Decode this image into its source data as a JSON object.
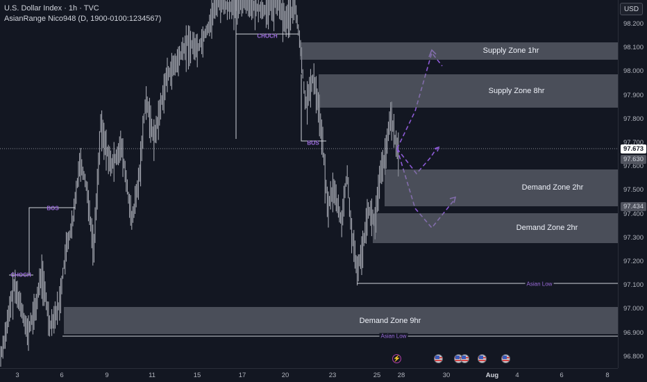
{
  "header": {
    "title": "U.S. Dollar Index · 1h · TVC",
    "indicator": "AsianRange Nico948 (D, 1900-0100:1234567)"
  },
  "price_axis": {
    "currency": "USD",
    "labels": [
      "98.200",
      "98.100",
      "98.000",
      "97.900",
      "97.800",
      "97.700",
      "97.600",
      "97.500",
      "97.400",
      "97.300",
      "97.200",
      "97.100",
      "97.000",
      "96.900",
      "96.800"
    ],
    "current_price": "97.673",
    "price_tag_a": "97.630",
    "price_tag_b": "97.434"
  },
  "time_axis": {
    "labels": [
      "3",
      "6",
      "9",
      "11",
      "15",
      "17",
      "20",
      "23",
      "25",
      "28",
      "30",
      "Aug",
      "4",
      "6",
      "8"
    ],
    "bold_label": "Aug"
  },
  "zones": [
    {
      "label": "Supply Zone 1hr",
      "top_price": 98.125,
      "bottom_price": 98.05
    },
    {
      "label": "Supply Zone 8hr",
      "top_price": 97.99,
      "bottom_price": 97.85
    },
    {
      "label": "Demand Zone 2hr",
      "top_price": 97.59,
      "bottom_price": 97.435
    },
    {
      "label": "Demand Zone 2hr",
      "top_price": 97.405,
      "bottom_price": 97.28
    },
    {
      "label": "Demand Zone 9hr",
      "top_price": 97.01,
      "bottom_price": 96.895
    }
  ],
  "structure_labels": {
    "choch_top": "CHOCH",
    "bos_mid": "BOS",
    "bos_left": "BOS",
    "choch_left": "CHOCH"
  },
  "asian_labels": {
    "low_1": "Asian Low",
    "low_2": "Asian Low"
  },
  "events": {
    "lightning": "lightning-icon",
    "flags": [
      "us-flag-icon",
      "us-flag-icon",
      "us-flag-icon",
      "us-flag-icon",
      "us-flag-icon"
    ]
  },
  "colors": {
    "background": "#131722",
    "candle": "#b2b5be",
    "zone": "#787b86",
    "projection": "#8e5bd8",
    "structure": "#9c6cdc"
  }
}
